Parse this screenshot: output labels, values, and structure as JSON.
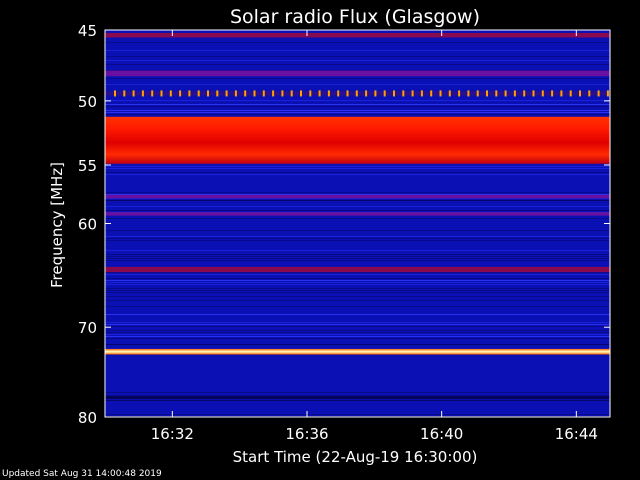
{
  "footer": {
    "updated": "Updated Sat Aug 31 14:00:48 2019"
  },
  "chart_data": {
    "type": "heatmap",
    "title": "Solar radio Flux (Glasgow)",
    "xlabel": "Start Time (22-Aug-19 16:30:00)",
    "ylabel": "Frequency [MHz]",
    "x_ticks": [
      {
        "minute": 2,
        "label": "16:32"
      },
      {
        "minute": 6,
        "label": "16:36"
      },
      {
        "minute": 10,
        "label": "16:40"
      },
      {
        "minute": 14,
        "label": "16:44"
      }
    ],
    "xlim_minutes": [
      0,
      15
    ],
    "y_ticks": [
      45,
      50,
      55,
      60,
      70,
      80
    ],
    "ylim_mhz": [
      45,
      80
    ],
    "y_scale": "log",
    "colors": {
      "background": "#0a0fb0",
      "low": "#1010a0",
      "mid": "#3030e0",
      "hot": "#ff2000",
      "peak": "#ffff90"
    },
    "bands": [
      {
        "f_from": 45.2,
        "f_to": 45.5,
        "level": "dark-red"
      },
      {
        "f_from": 47.8,
        "f_to": 48.2,
        "level": "purple"
      },
      {
        "f_from": 49.3,
        "f_to": 49.6,
        "level": "spike-row"
      },
      {
        "f_from": 51.2,
        "f_to": 54.9,
        "level": "hot"
      },
      {
        "f_from": 57.5,
        "f_to": 57.8,
        "level": "purple"
      },
      {
        "f_from": 59.0,
        "f_to": 59.3,
        "level": "purple"
      },
      {
        "f_from": 64.0,
        "f_to": 64.5,
        "level": "dark-red"
      },
      {
        "f_from": 72.3,
        "f_to": 72.9,
        "level": "peak"
      },
      {
        "f_from": 77.5,
        "f_to": 77.9,
        "level": "dark"
      }
    ]
  }
}
